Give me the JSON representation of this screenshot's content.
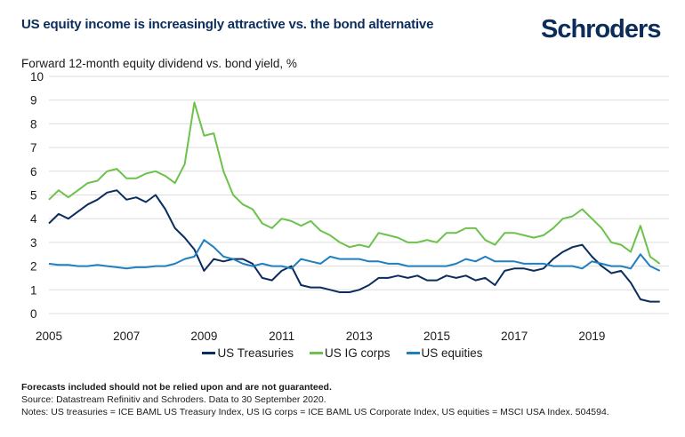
{
  "header": {
    "title": "US equity income is increasingly attractive vs. the bond alternative",
    "logo": "Schroders",
    "subtitle": "Forward 12-month equity dividend vs. bond yield, %"
  },
  "colors": {
    "treasuries": "#0b2d5e",
    "ig_corps": "#6cc24a",
    "equities": "#1f7fc1",
    "title": "#0c2d5b",
    "grid": "#dddddd"
  },
  "chart_data": {
    "type": "line",
    "title": "Forward 12-month equity dividend vs. bond yield, %",
    "xlabel": "",
    "ylabel": "%",
    "xlim": [
      2005,
      2020.75
    ],
    "ylim": [
      0,
      10
    ],
    "grid": true,
    "legend_position": "bottom",
    "x_ticks": [
      "2005",
      "2007",
      "2009",
      "2011",
      "2013",
      "2015",
      "2017",
      "2019"
    ],
    "y_ticks": [
      "0",
      "1",
      "2",
      "3",
      "4",
      "5",
      "6",
      "7",
      "8",
      "9",
      "10"
    ],
    "x_start": 2005,
    "x_step": 0.25,
    "series": [
      {
        "name": "US Treasuries",
        "key": "treasuries",
        "values": [
          3.8,
          4.2,
          4.0,
          4.3,
          4.6,
          4.8,
          5.1,
          5.2,
          4.8,
          4.9,
          4.7,
          5.0,
          4.4,
          3.6,
          3.2,
          2.7,
          1.8,
          2.3,
          2.2,
          2.3,
          2.3,
          2.1,
          1.5,
          1.4,
          1.8,
          2.0,
          1.2,
          1.1,
          1.1,
          1.0,
          0.9,
          0.9,
          1.0,
          1.2,
          1.5,
          1.5,
          1.6,
          1.5,
          1.6,
          1.4,
          1.4,
          1.6,
          1.5,
          1.6,
          1.4,
          1.5,
          1.2,
          1.8,
          1.9,
          1.9,
          1.8,
          1.9,
          2.3,
          2.6,
          2.8,
          2.9,
          2.4,
          2.0,
          1.7,
          1.8,
          1.3,
          0.6,
          0.5,
          0.5
        ]
      },
      {
        "name": "US IG corps",
        "key": "ig_corps",
        "values": [
          4.8,
          5.2,
          4.9,
          5.2,
          5.5,
          5.6,
          6.0,
          6.1,
          5.7,
          5.7,
          5.9,
          6.0,
          5.8,
          5.5,
          6.3,
          8.9,
          7.5,
          7.6,
          6.0,
          5.0,
          4.6,
          4.4,
          3.8,
          3.6,
          4.0,
          3.9,
          3.7,
          3.9,
          3.5,
          3.3,
          3.0,
          2.8,
          2.9,
          2.8,
          3.4,
          3.3,
          3.2,
          3.0,
          3.0,
          3.1,
          3.0,
          3.4,
          3.4,
          3.6,
          3.6,
          3.1,
          2.9,
          3.4,
          3.4,
          3.3,
          3.2,
          3.3,
          3.6,
          4.0,
          4.1,
          4.4,
          4.0,
          3.6,
          3.0,
          2.9,
          2.6,
          3.7,
          2.4,
          2.1
        ]
      },
      {
        "name": "US equities",
        "key": "equities",
        "values": [
          2.1,
          2.05,
          2.05,
          2.0,
          2.0,
          2.05,
          2.0,
          1.95,
          1.9,
          1.95,
          1.95,
          2.0,
          2.0,
          2.1,
          2.3,
          2.4,
          3.1,
          2.8,
          2.4,
          2.3,
          2.1,
          2.0,
          2.1,
          2.0,
          2.0,
          1.9,
          2.3,
          2.2,
          2.1,
          2.4,
          2.3,
          2.3,
          2.3,
          2.2,
          2.2,
          2.1,
          2.1,
          2.0,
          2.0,
          2.0,
          2.0,
          2.0,
          2.1,
          2.3,
          2.2,
          2.4,
          2.2,
          2.2,
          2.2,
          2.1,
          2.1,
          2.1,
          2.0,
          2.0,
          2.0,
          1.9,
          2.2,
          2.1,
          2.0,
          2.0,
          1.9,
          2.5,
          2.0,
          1.8
        ]
      }
    ]
  },
  "legend": [
    "US Treasuries",
    "US IG corps",
    "US equities"
  ],
  "notes": {
    "disclaimer": "Forecasts included should not be relied upon and are not guaranteed.",
    "source": "Source: Datastream Refinitiv and Schroders. Data to 30 September 2020.",
    "definitions": "Notes: US treasuries = ICE BAML US Treasury Index, US IG corps = ICE BAML US Corporate Index, US equities = MSCI USA Index. 504594."
  }
}
